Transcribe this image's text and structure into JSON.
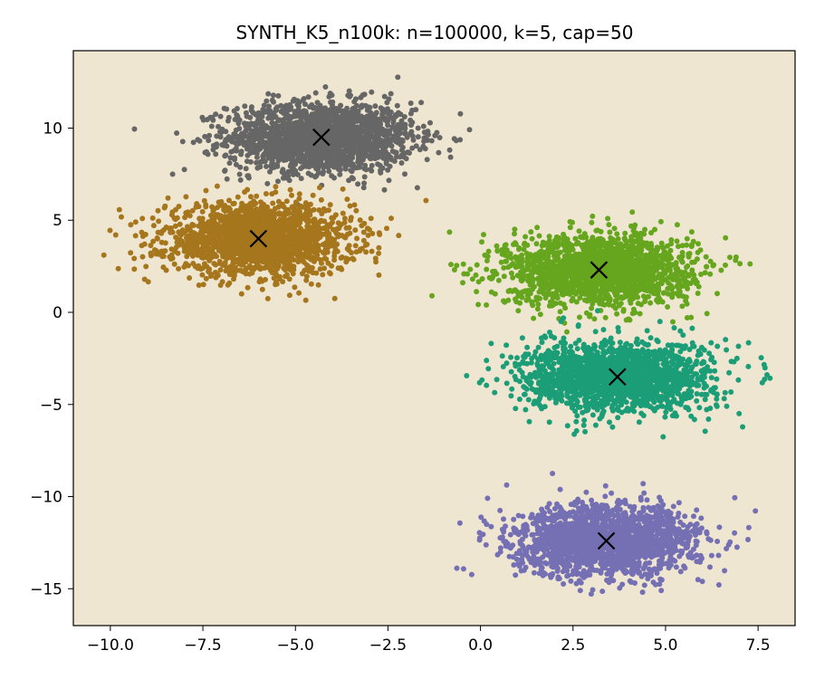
{
  "chart_data": {
    "type": "scatter",
    "title": "SYNTH_K5_n100k: n=100000, k=5, cap=50",
    "xlabel": "",
    "ylabel": "",
    "xlim": [
      -11.0,
      8.5
    ],
    "ylim": [
      -17.0,
      14.2
    ],
    "xticks": [
      -10.0,
      -7.5,
      -5.0,
      -2.5,
      0.0,
      2.5,
      5.0,
      7.5
    ],
    "xtick_labels": [
      "−10.0",
      "−7.5",
      "−5.0",
      "−2.5",
      "0.0",
      "2.5",
      "5.0",
      "7.5"
    ],
    "yticks": [
      10,
      5,
      0,
      -5,
      -10,
      -15
    ],
    "ytick_labels": [
      "10",
      "5",
      "0",
      "−5",
      "−10",
      "−15"
    ],
    "grid": false,
    "background_color": "#efe6d2",
    "clusters": [
      {
        "color": "#666666",
        "center": [
          -4.3,
          9.5
        ],
        "spread_x": 1.25,
        "spread_y": 0.95
      },
      {
        "color": "#a6761d",
        "center": [
          -6.0,
          4.0
        ],
        "spread_x": 1.25,
        "spread_y": 0.95
      },
      {
        "color": "#66a61e",
        "center": [
          3.2,
          2.3
        ],
        "spread_x": 1.25,
        "spread_y": 0.95
      },
      {
        "color": "#1b9e77",
        "center": [
          3.7,
          -3.5
        ],
        "spread_x": 1.25,
        "spread_y": 0.95
      },
      {
        "color": "#7570b3",
        "center": [
          3.4,
          -12.4
        ],
        "spread_x": 1.25,
        "spread_y": 0.95
      }
    ],
    "centroids": [
      {
        "x": -4.3,
        "y": 9.5
      },
      {
        "x": -6.0,
        "y": 4.0
      },
      {
        "x": 3.2,
        "y": 2.3
      },
      {
        "x": 3.7,
        "y": -3.5
      },
      {
        "x": 3.4,
        "y": -12.4
      }
    ],
    "centroid_marker": "x",
    "centroid_color": "#000000"
  }
}
